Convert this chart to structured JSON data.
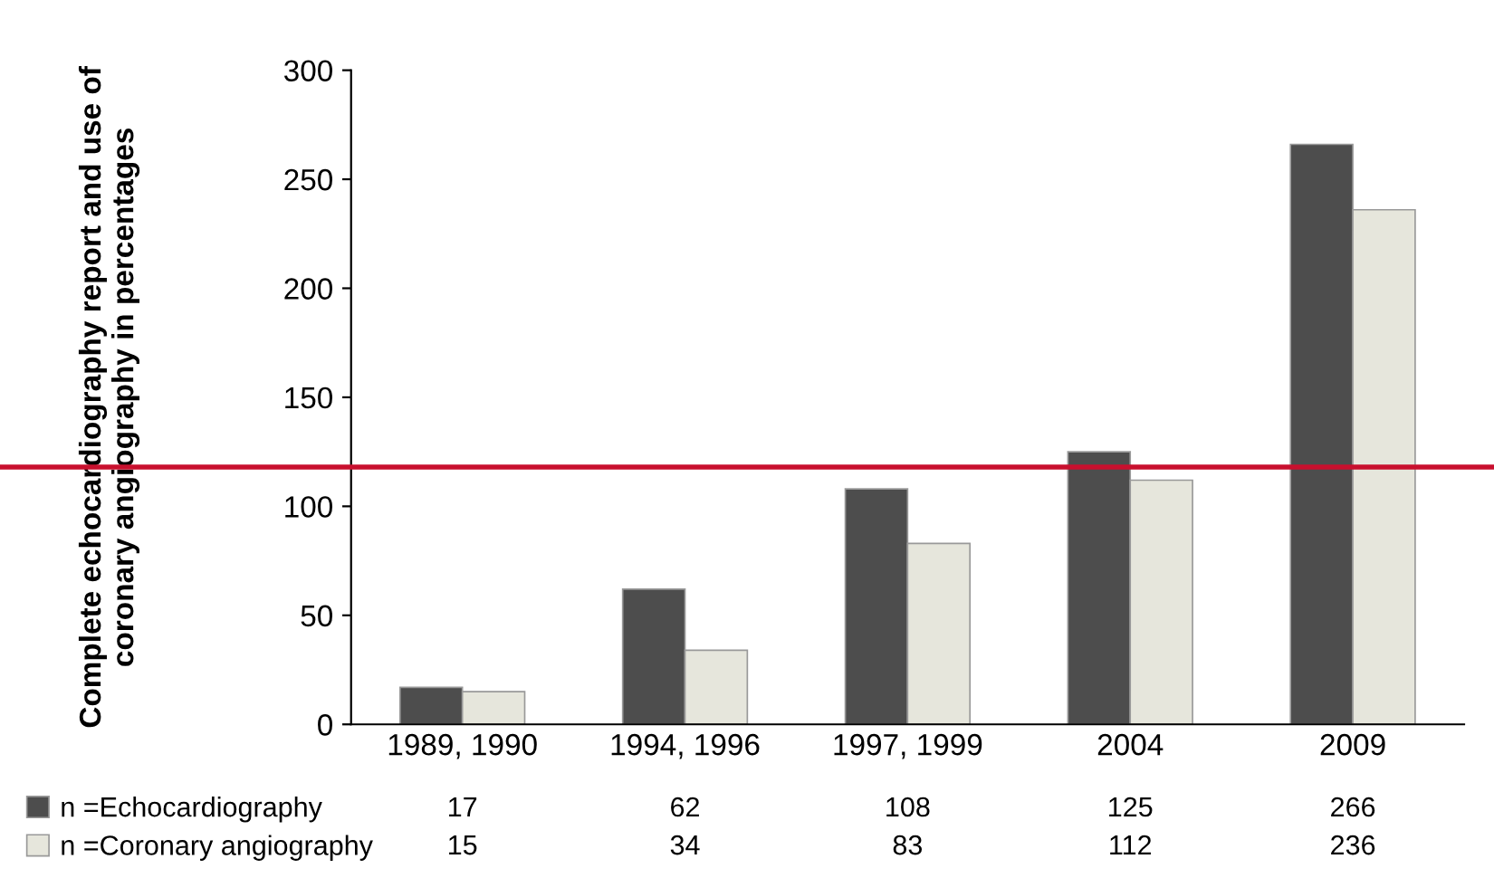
{
  "chart_data": {
    "type": "bar",
    "ylabel": "Complete echocardiography report and use of\ncoronary angiography in percentages",
    "categories": [
      "1989, 1990",
      "1994, 1996",
      "1997, 1999",
      "2004",
      "2009"
    ],
    "series": [
      {
        "name": "n =Echocardiography",
        "color": "#4d4d4d",
        "values": [
          17,
          62,
          108,
          125,
          266
        ]
      },
      {
        "name": "n =Coronary angiography",
        "color": "#e6e6dc",
        "values": [
          15,
          34,
          83,
          112,
          236
        ]
      }
    ],
    "ylim": [
      0,
      300
    ],
    "yticks": [
      0,
      50,
      100,
      150,
      200,
      250,
      300
    ],
    "ref_lines": [
      {
        "axis": "y",
        "value": 118,
        "color": "#c8102e"
      }
    ],
    "data_labels": true,
    "legend": "bottom",
    "grid": false
  }
}
